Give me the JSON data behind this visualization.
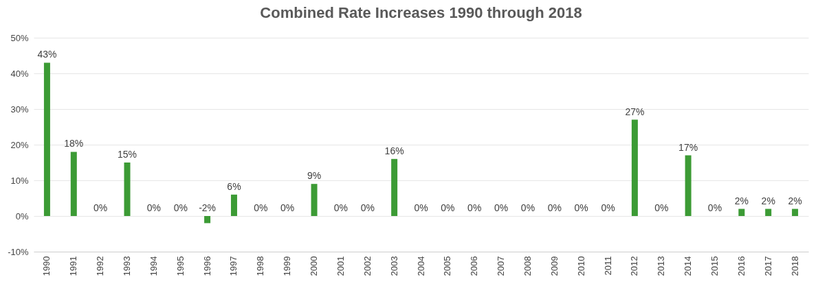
{
  "chart_data": {
    "type": "bar",
    "title": "Combined Rate Increases 1990 through 2018",
    "categories": [
      "1990",
      "1991",
      "1992",
      "1993",
      "1994",
      "1995",
      "1996",
      "1997",
      "1998",
      "1999",
      "2000",
      "2001",
      "2002",
      "2003",
      "2004",
      "2005",
      "2006",
      "2007",
      "2008",
      "2009",
      "2010",
      "2011",
      "2012",
      "2013",
      "2014",
      "2015",
      "2016",
      "2017",
      "2018"
    ],
    "values": [
      43,
      18,
      0,
      15,
      0,
      0,
      -2,
      6,
      0,
      0,
      9,
      0,
      0,
      16,
      0,
      0,
      0,
      0,
      0,
      0,
      0,
      0,
      27,
      0,
      17,
      0,
      2,
      2,
      2
    ],
    "value_labels": [
      "43%",
      "18%",
      "0%",
      "15%",
      "0%",
      "0%",
      "-2%",
      "6%",
      "0%",
      "0%",
      "9%",
      "0%",
      "0%",
      "16%",
      "0%",
      "0%",
      "0%",
      "0%",
      "0%",
      "0%",
      "0%",
      "0%",
      "27%",
      "0%",
      "17%",
      "0%",
      "2%",
      "2%",
      "2%"
    ],
    "color": "#3c9b35",
    "ylim": [
      -10,
      50
    ],
    "yticks": [
      {
        "value": -10,
        "label": "-10%"
      },
      {
        "value": 0,
        "label": "0%"
      },
      {
        "value": 10,
        "label": "10%"
      },
      {
        "value": 20,
        "label": "20%"
      },
      {
        "value": 30,
        "label": "30%"
      },
      {
        "value": 40,
        "label": "40%"
      },
      {
        "value": 50,
        "label": "50%"
      }
    ],
    "grid": "y"
  }
}
